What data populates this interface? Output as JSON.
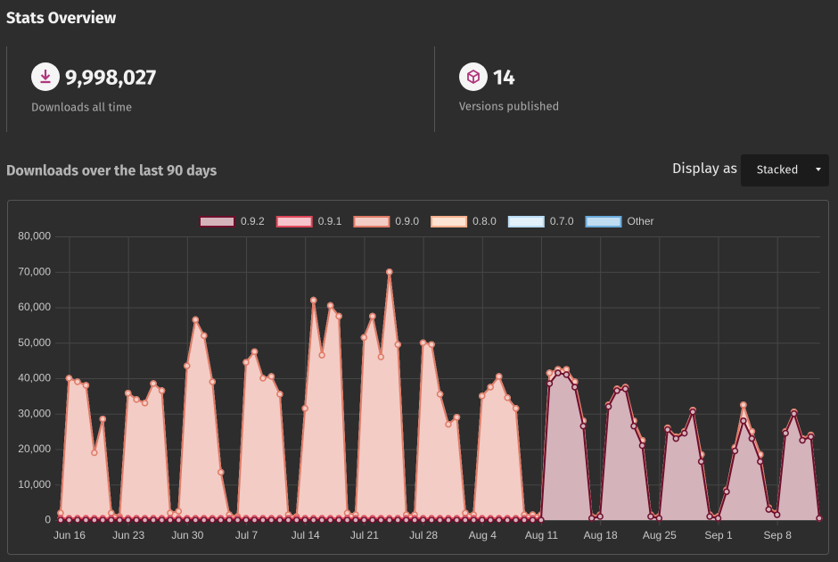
{
  "header": {
    "title": "Stats Overview"
  },
  "stats": [
    {
      "value": "9,998,027",
      "label": "Downloads all time"
    },
    {
      "value": "14",
      "label": "Versions published"
    }
  ],
  "chart_section": {
    "title": "Downloads over the last 90 days",
    "display_label": "Display as",
    "display_value": "Stacked"
  },
  "chart_data": {
    "type": "line",
    "stacked": true,
    "fill": true,
    "grid": true,
    "legend": "top",
    "categories": [
      null,
      "Jun 16",
      null,
      null,
      null,
      null,
      null,
      null,
      "Jun 23",
      null,
      null,
      null,
      null,
      null,
      null,
      "Jun 30",
      null,
      null,
      null,
      null,
      null,
      null,
      "Jul 7",
      null,
      null,
      null,
      null,
      null,
      null,
      "Jul 14",
      null,
      null,
      null,
      null,
      null,
      null,
      "Jul 21",
      null,
      null,
      null,
      null,
      null,
      null,
      "Jul 28",
      null,
      null,
      null,
      null,
      null,
      null,
      "Aug 4",
      null,
      null,
      null,
      null,
      null,
      null,
      "Aug 11",
      null,
      null,
      null,
      null,
      null,
      null,
      "Aug 18",
      null,
      null,
      null,
      null,
      null,
      null,
      "Aug 25",
      null,
      null,
      null,
      null,
      null,
      null,
      "Sep 1",
      null,
      null,
      null,
      null,
      null,
      null,
      "Sep 8",
      null,
      null,
      null,
      null,
      null
    ],
    "series": [
      {
        "name": "0.9.2",
        "color": "#6d0e2c",
        "fill_color": "#d4b3bb",
        "values": [
          0,
          0,
          0,
          0,
          0,
          0,
          0,
          0,
          0,
          0,
          0,
          0,
          0,
          0,
          0,
          0,
          0,
          0,
          0,
          0,
          0,
          0,
          0,
          0,
          0,
          0,
          0,
          0,
          0,
          0,
          0,
          0,
          0,
          0,
          0,
          0,
          0,
          0,
          0,
          0,
          0,
          0,
          0,
          0,
          0,
          0,
          0,
          0,
          0,
          0,
          0,
          0,
          0,
          0,
          0,
          0,
          0,
          0,
          38500,
          41500,
          41000,
          37500,
          26500,
          500,
          1000,
          32000,
          36500,
          37000,
          26500,
          21000,
          1000,
          500,
          25500,
          23000,
          24500,
          30500,
          16500,
          1000,
          500,
          8000,
          19500,
          28000,
          23000,
          16500,
          3000,
          1500,
          24500,
          30000,
          22500,
          23500,
          500
        ]
      },
      {
        "name": "0.9.1",
        "color": "#e0475a",
        "fill_color": "#f6c4cb",
        "values": [
          500,
          500,
          500,
          500,
          500,
          500,
          500,
          500,
          500,
          500,
          500,
          500,
          500,
          500,
          500,
          500,
          500,
          500,
          500,
          500,
          500,
          500,
          500,
          500,
          500,
          500,
          500,
          500,
          500,
          500,
          500,
          500,
          500,
          500,
          500,
          500,
          500,
          500,
          500,
          500,
          500,
          500,
          500,
          500,
          500,
          500,
          500,
          500,
          500,
          500,
          500,
          500,
          500,
          500,
          500,
          500,
          500,
          500,
          0,
          0,
          0,
          0,
          0,
          0,
          0,
          0,
          0,
          0,
          0,
          0,
          0,
          0,
          0,
          0,
          0,
          0,
          0,
          0,
          0,
          0,
          0,
          0,
          0,
          0,
          0,
          0,
          0,
          0,
          0,
          0,
          0
        ]
      },
      {
        "name": "0.9.0",
        "color": "#e07b67",
        "fill_color": "#f3ccc5",
        "values": [
          1500,
          39500,
          38500,
          37500,
          18500,
          28000,
          1500,
          500,
          35300,
          33500,
          32500,
          38000,
          36000,
          1500,
          2000,
          43000,
          56000,
          51500,
          38500,
          13000,
          1000,
          500,
          44000,
          47000,
          39500,
          40000,
          35000,
          1000,
          500,
          31000,
          61500,
          46000,
          60000,
          57000,
          1500,
          1000,
          51000,
          57000,
          45500,
          69500,
          49000,
          1000,
          1000,
          49500,
          49000,
          35000,
          26500,
          28500,
          1500,
          1000,
          34500,
          37000,
          40000,
          34000,
          31000,
          1000,
          1000,
          1000,
          3000,
          1000,
          1500,
          1500,
          1500,
          500,
          500,
          500,
          500,
          500,
          1500,
          1500,
          500,
          500,
          500,
          500,
          500,
          500,
          2000,
          500,
          500,
          500,
          1000,
          4500,
          2000,
          2000,
          500,
          500,
          500,
          500,
          500,
          500,
          0
        ]
      },
      {
        "name": "0.8.0",
        "color": "#f7b08f",
        "fill_color": "#fde3d3",
        "values": [
          0,
          0,
          0,
          0,
          0,
          0,
          0,
          0,
          0,
          0,
          0,
          0,
          0,
          0,
          0,
          0,
          0,
          0,
          0,
          0,
          0,
          0,
          0,
          0,
          0,
          0,
          0,
          0,
          0,
          0,
          0,
          0,
          0,
          0,
          0,
          0,
          0,
          0,
          0,
          0,
          0,
          0,
          0,
          0,
          0,
          0,
          0,
          0,
          0,
          0,
          0,
          0,
          0,
          0,
          0,
          0,
          0,
          0,
          0,
          0,
          0,
          0,
          0,
          0,
          0,
          0,
          0,
          0,
          0,
          0,
          0,
          0,
          0,
          0,
          0,
          0,
          0,
          0,
          0,
          0,
          0,
          0,
          0,
          0,
          0,
          0,
          0,
          0,
          0,
          0,
          0
        ]
      },
      {
        "name": "0.7.0",
        "color": "#b9dcf2",
        "fill_color": "#e3f1fb",
        "values": [
          0,
          0,
          0,
          0,
          0,
          0,
          0,
          0,
          0,
          0,
          0,
          0,
          0,
          0,
          0,
          0,
          0,
          0,
          0,
          0,
          0,
          0,
          0,
          0,
          0,
          0,
          0,
          0,
          0,
          0,
          0,
          0,
          0,
          0,
          0,
          0,
          0,
          0,
          0,
          0,
          0,
          0,
          0,
          0,
          0,
          0,
          0,
          0,
          0,
          0,
          0,
          0,
          0,
          0,
          0,
          0,
          0,
          0,
          0,
          0,
          0,
          0,
          0,
          0,
          0,
          0,
          0,
          0,
          0,
          0,
          0,
          0,
          0,
          0,
          0,
          0,
          0,
          0,
          0,
          0,
          0,
          0,
          0,
          0,
          0,
          0,
          0,
          0,
          0,
          0,
          0
        ]
      },
      {
        "name": "Other",
        "color": "#6aaadb",
        "fill_color": "#c0dcf0",
        "values": [
          0,
          0,
          0,
          0,
          0,
          0,
          0,
          0,
          0,
          0,
          0,
          0,
          0,
          0,
          0,
          0,
          0,
          0,
          0,
          0,
          0,
          0,
          0,
          0,
          0,
          0,
          0,
          0,
          0,
          0,
          0,
          0,
          0,
          0,
          0,
          0,
          0,
          0,
          0,
          0,
          0,
          0,
          0,
          0,
          0,
          0,
          0,
          0,
          0,
          0,
          0,
          0,
          0,
          0,
          0,
          0,
          0,
          0,
          0,
          0,
          0,
          0,
          0,
          0,
          0,
          0,
          0,
          0,
          0,
          0,
          0,
          0,
          0,
          0,
          0,
          0,
          0,
          0,
          0,
          0,
          0,
          0,
          0,
          0,
          0,
          0,
          0,
          0,
          0,
          0,
          0
        ]
      }
    ],
    "ylim": [
      0,
      80000
    ],
    "yticks": [
      0,
      {
        "value": 10000,
        "label": "10,000"
      },
      {
        "value": 20000,
        "label": "20,000"
      },
      {
        "value": 30000,
        "label": "30,000"
      },
      {
        "value": 40000,
        "label": "40,000"
      },
      {
        "value": 50000,
        "label": "50,000"
      },
      {
        "value": 60000,
        "label": "60,000"
      },
      {
        "value": 70000,
        "label": "70,000"
      },
      {
        "value": 80000,
        "label": "80,000"
      }
    ]
  }
}
